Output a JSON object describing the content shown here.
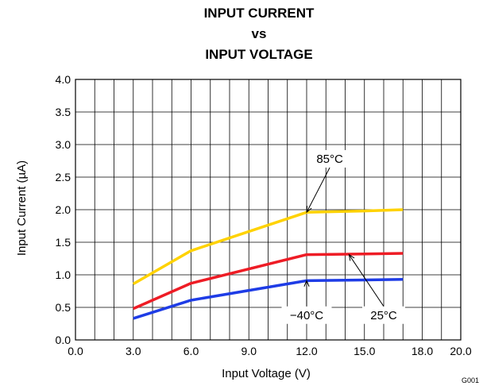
{
  "chart_data": {
    "type": "line",
    "title_lines": [
      "INPUT CURRENT",
      "vs",
      "INPUT VOLTAGE"
    ],
    "xlabel": "Input Voltage (V)",
    "ylabel": "Input Current (µA)",
    "xlim": [
      0,
      20
    ],
    "ylim": [
      0,
      4
    ],
    "x_ticks": [
      "0.0",
      "3.0",
      "6.0",
      "9.0",
      "12.0",
      "15.0",
      "18.0",
      "20.0"
    ],
    "y_ticks": [
      "0.0",
      "0.5",
      "1.0",
      "1.5",
      "2.0",
      "2.5",
      "3.0",
      "3.5",
      "4.0"
    ],
    "grid": true,
    "figure_id": "G001",
    "series": [
      {
        "name": "85°C",
        "color": "#FFD200",
        "x": [
          3,
          6,
          12,
          15,
          17
        ],
        "y": [
          0.86,
          1.37,
          1.96,
          1.98,
          2.0
        ]
      },
      {
        "name": "25°C",
        "color": "#EE1C25",
        "x": [
          3,
          6,
          12,
          15,
          17
        ],
        "y": [
          0.48,
          0.87,
          1.31,
          1.32,
          1.33
        ]
      },
      {
        "name": "−40°C",
        "color": "#1E3CE6",
        "x": [
          3,
          6,
          12,
          15,
          17
        ],
        "y": [
          0.33,
          0.61,
          0.91,
          0.92,
          0.93
        ]
      }
    ],
    "annotations": [
      {
        "text": "85°C",
        "x": 13.2,
        "y": 2.72,
        "arrow_to": [
          12.0,
          1.96
        ]
      },
      {
        "text": "−40°C",
        "x": 12.0,
        "y": 0.32,
        "arrow_to": [
          12.0,
          0.91
        ]
      },
      {
        "text": "25°C",
        "x": 16.0,
        "y": 0.32,
        "arrow_to": [
          14.2,
          1.31
        ]
      }
    ]
  }
}
